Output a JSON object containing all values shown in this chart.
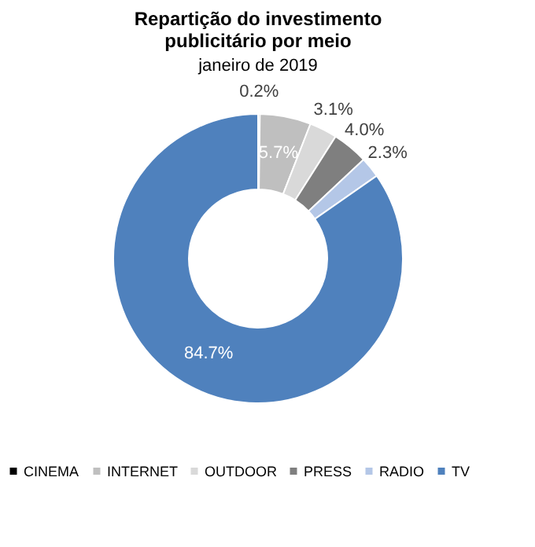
{
  "chart_data": {
    "type": "donut",
    "title": [
      "Repartição do investimento",
      "publicitário por meio"
    ],
    "subtitle": "janeiro de 2019",
    "categories": [
      "CINEMA",
      "INTERNET",
      "OUTDOOR",
      "PRESS",
      "RADIO",
      "TV"
    ],
    "values": [
      0.2,
      5.7,
      3.1,
      4.0,
      2.3,
      84.7
    ],
    "colors": [
      "#000000",
      "#bfbfbf",
      "#d9d9d9",
      "#7f7f7f",
      "#b4c7e7",
      "#4f81bd"
    ],
    "value_labels": [
      "0.2%",
      "5.7%",
      "3.1%",
      "4.0%",
      "2.3%",
      "84.7%"
    ],
    "legend": "bottom"
  }
}
